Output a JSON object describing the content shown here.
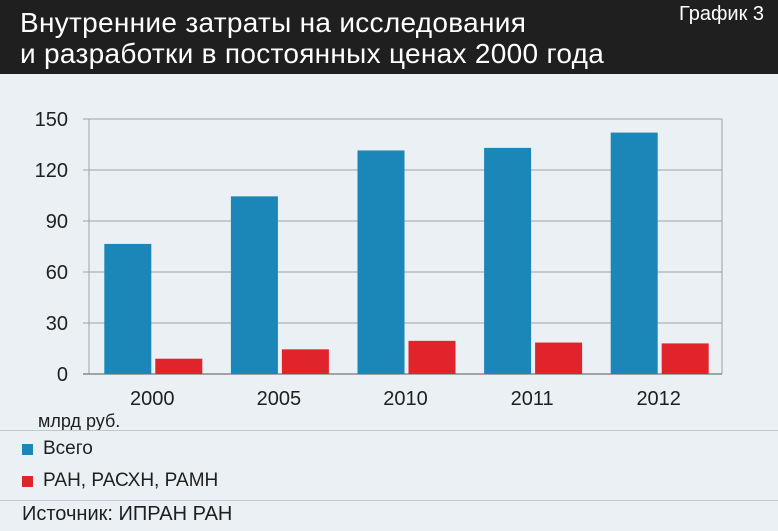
{
  "header": {
    "title": "Внутренние затраты на исследования\nи разработки в постоянных ценах 2000 года",
    "chart_label": "График 3"
  },
  "unit_label": "млрд руб.",
  "source": "Источник: ИПРАН РАН",
  "colors": {
    "series_total": "#1b86b8",
    "series_academies": "#e1242b",
    "grid": "#9aa4a8"
  },
  "chart_data": {
    "type": "bar",
    "title": "Внутренние затраты на исследования и разработки в постоянных ценах 2000 года",
    "categories": [
      "2000",
      "2005",
      "2010",
      "2011",
      "2012"
    ],
    "series": [
      {
        "name": "Всего",
        "values": [
          76.5,
          104.5,
          131.5,
          133,
          142
        ]
      },
      {
        "name": "РАН, РАСХН, РАМН",
        "values": [
          9,
          14.5,
          19.5,
          18.5,
          18
        ]
      }
    ],
    "ylabel": "млрд руб.",
    "ylim": [
      0,
      150
    ],
    "yticks": [
      "0",
      "30",
      "60",
      "90",
      "120",
      "150"
    ],
    "grid": true,
    "legend": "bottom-left"
  }
}
